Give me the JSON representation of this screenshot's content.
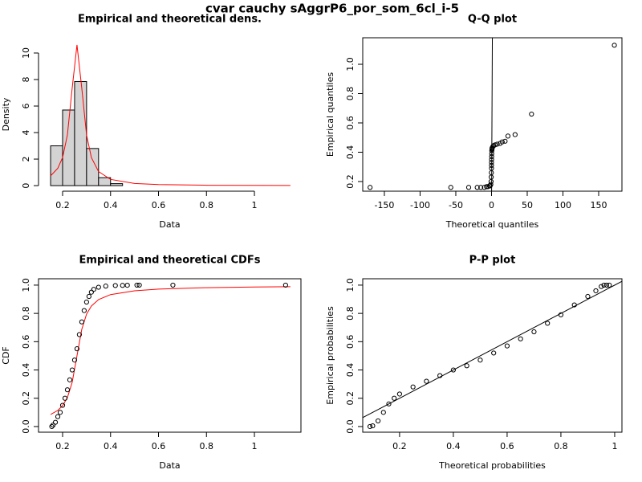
{
  "title": "cvar cauchy sAggrP6_por_som_6cl_i-5",
  "chart_data": [
    {
      "type": "histogram",
      "title": "Empirical and theoretical dens.",
      "xlabel": "Data",
      "ylabel": "Density",
      "bins": [
        0.15,
        0.2,
        0.25,
        0.3,
        0.35,
        0.4,
        0.45
      ],
      "values": [
        3.0,
        5.7,
        7.85,
        2.8,
        0.6,
        0.15
      ],
      "color": "#d3d3d3",
      "curve": {
        "x": [
          0.15,
          0.18,
          0.2,
          0.22,
          0.24,
          0.26,
          0.28,
          0.3,
          0.32,
          0.35,
          0.4,
          0.5,
          0.6,
          0.8,
          1.0,
          1.15
        ],
        "values": [
          0.74,
          1.31,
          2.12,
          3.82,
          7.35,
          10.61,
          7.35,
          3.82,
          2.12,
          1.06,
          0.47,
          0.16,
          0.08,
          0.03,
          0.02,
          0.01
        ],
        "color": "#ff0000"
      },
      "xlim": [
        0.0996,
        1.194
      ],
      "ylim": [
        -0.42,
        11.15
      ],
      "xticks": [
        0.2,
        0.4,
        0.6,
        0.8,
        1.0
      ],
      "yticks": [
        0,
        2,
        4,
        6,
        8,
        10
      ],
      "box": false
    },
    {
      "type": "scatter",
      "title": "Q-Q plot",
      "xlabel": "Theoretical quantiles",
      "ylabel": "Empirical quantiles",
      "x": [
        -170,
        -57,
        -32,
        -20,
        -15,
        -10,
        -7,
        -5,
        -3,
        -2,
        -1,
        -0.6,
        -0.4,
        -0.2,
        0,
        0,
        0,
        0.1,
        0.2,
        0.3,
        0.4,
        0.6,
        0.8,
        1,
        2,
        3,
        5,
        8,
        12,
        15,
        19,
        23,
        33,
        56,
        172
      ],
      "values": [
        0.16,
        0.16,
        0.16,
        0.16,
        0.16,
        0.16,
        0.165,
        0.165,
        0.17,
        0.17,
        0.18,
        0.2,
        0.23,
        0.26,
        0.29,
        0.31,
        0.33,
        0.35,
        0.37,
        0.39,
        0.41,
        0.42,
        0.425,
        0.43,
        0.44,
        0.445,
        0.45,
        0.455,
        0.46,
        0.47,
        0.475,
        0.51,
        0.52,
        0.66,
        1.13
      ],
      "color": "#000000",
      "diagonal": true,
      "xlim": [
        -180.3,
        182.6
      ],
      "ylim": [
        0.134,
        1.181
      ],
      "xticks": [
        -150,
        -100,
        -50,
        0,
        50,
        100,
        150
      ],
      "yticks": [
        0.2,
        0.4,
        0.6,
        0.8,
        1.0
      ],
      "box": true
    },
    {
      "type": "scatter",
      "title": "Empirical and theoretical CDFs",
      "xlabel": "Data",
      "ylabel": "CDF",
      "x": [
        0.155,
        0.16,
        0.17,
        0.18,
        0.19,
        0.2,
        0.21,
        0.22,
        0.23,
        0.24,
        0.25,
        0.26,
        0.27,
        0.28,
        0.29,
        0.3,
        0.31,
        0.32,
        0.33,
        0.35,
        0.38,
        0.42,
        0.45,
        0.47,
        0.51,
        0.52,
        0.66,
        1.13
      ],
      "values": [
        0,
        0.01,
        0.03,
        0.07,
        0.1,
        0.15,
        0.2,
        0.26,
        0.33,
        0.4,
        0.47,
        0.55,
        0.65,
        0.74,
        0.82,
        0.88,
        0.92,
        0.95,
        0.97,
        0.985,
        0.993,
        0.997,
        0.998,
        0.999,
        1,
        1,
        1,
        1
      ],
      "color": "#000000",
      "curve": {
        "x": [
          0.15,
          0.18,
          0.2,
          0.22,
          0.24,
          0.26,
          0.28,
          0.3,
          0.32,
          0.35,
          0.4,
          0.5,
          0.6,
          0.8,
          1.0,
          1.15
        ],
        "values": [
          0.085,
          0.114,
          0.148,
          0.205,
          0.313,
          0.5,
          0.687,
          0.795,
          0.852,
          0.898,
          0.933,
          0.96,
          0.972,
          0.982,
          0.987,
          0.989
        ],
        "color": "#ff0000"
      },
      "xlim": [
        0.0996,
        1.194
      ],
      "ylim": [
        -0.04,
        1.045
      ],
      "xticks": [
        0.2,
        0.4,
        0.6,
        0.8,
        1.0
      ],
      "yticks": [
        0.0,
        0.2,
        0.4,
        0.6,
        0.8,
        1.0
      ],
      "box": true
    },
    {
      "type": "scatter",
      "title": "P-P plot",
      "xlabel": "Theoretical probabilities",
      "ylabel": "Empirical probabilities",
      "x": [
        0.09,
        0.1,
        0.12,
        0.14,
        0.16,
        0.18,
        0.2,
        0.25,
        0.3,
        0.35,
        0.4,
        0.45,
        0.5,
        0.55,
        0.6,
        0.65,
        0.7,
        0.75,
        0.8,
        0.85,
        0.9,
        0.93,
        0.95,
        0.96,
        0.97,
        0.98
      ],
      "values": [
        0,
        0.005,
        0.04,
        0.1,
        0.16,
        0.2,
        0.23,
        0.28,
        0.32,
        0.36,
        0.4,
        0.43,
        0.47,
        0.52,
        0.57,
        0.62,
        0.67,
        0.73,
        0.79,
        0.86,
        0.92,
        0.96,
        0.99,
        1,
        1,
        1
      ],
      "color": "#000000",
      "diagonal": true,
      "xlim": [
        0.063,
        1.027
      ],
      "ylim": [
        -0.04,
        1.045
      ],
      "xticks": [
        0.2,
        0.4,
        0.6,
        0.8,
        1.0
      ],
      "yticks": [
        0.0,
        0.2,
        0.4,
        0.6,
        0.8,
        1.0
      ],
      "box": true
    }
  ]
}
